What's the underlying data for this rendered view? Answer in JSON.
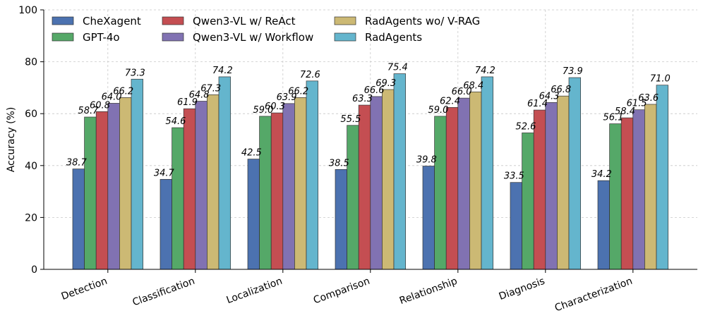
{
  "chart_data": {
    "type": "bar",
    "title": "",
    "xlabel": "",
    "ylabel": "Accuracy (%)",
    "ylim": [
      0,
      100
    ],
    "yticks": [
      0,
      20,
      40,
      60,
      80,
      100
    ],
    "grid": true,
    "legend_position": "top-left",
    "categories": [
      "Detection",
      "Classification",
      "Localization",
      "Comparison",
      "Relationship",
      "Diagnosis",
      "Characterization"
    ],
    "series": [
      {
        "name": "CheXagent",
        "color": "#4c72b0",
        "values": [
          38.7,
          34.7,
          42.5,
          38.5,
          39.8,
          33.5,
          34.2
        ]
      },
      {
        "name": "GPT-4o",
        "color": "#55a868",
        "values": [
          58.7,
          54.6,
          59.0,
          55.5,
          59.0,
          52.6,
          56.1
        ]
      },
      {
        "name": "Qwen3-VL w/ ReAct",
        "color": "#c44e52",
        "values": [
          60.8,
          61.9,
          60.3,
          63.3,
          62.4,
          61.4,
          58.4
        ]
      },
      {
        "name": "Qwen3-VL w/ Workflow",
        "color": "#8172b2",
        "values": [
          64.0,
          64.8,
          63.9,
          66.6,
          66.0,
          64.3,
          61.5
        ]
      },
      {
        "name": "RadAgents wo/ V-RAG",
        "color": "#ccb974",
        "values": [
          66.2,
          67.3,
          66.2,
          69.3,
          68.4,
          66.8,
          63.6
        ]
      },
      {
        "name": "RadAgents",
        "color": "#64b5cd",
        "values": [
          73.3,
          74.2,
          72.6,
          75.4,
          74.2,
          73.9,
          71.0
        ]
      }
    ]
  }
}
